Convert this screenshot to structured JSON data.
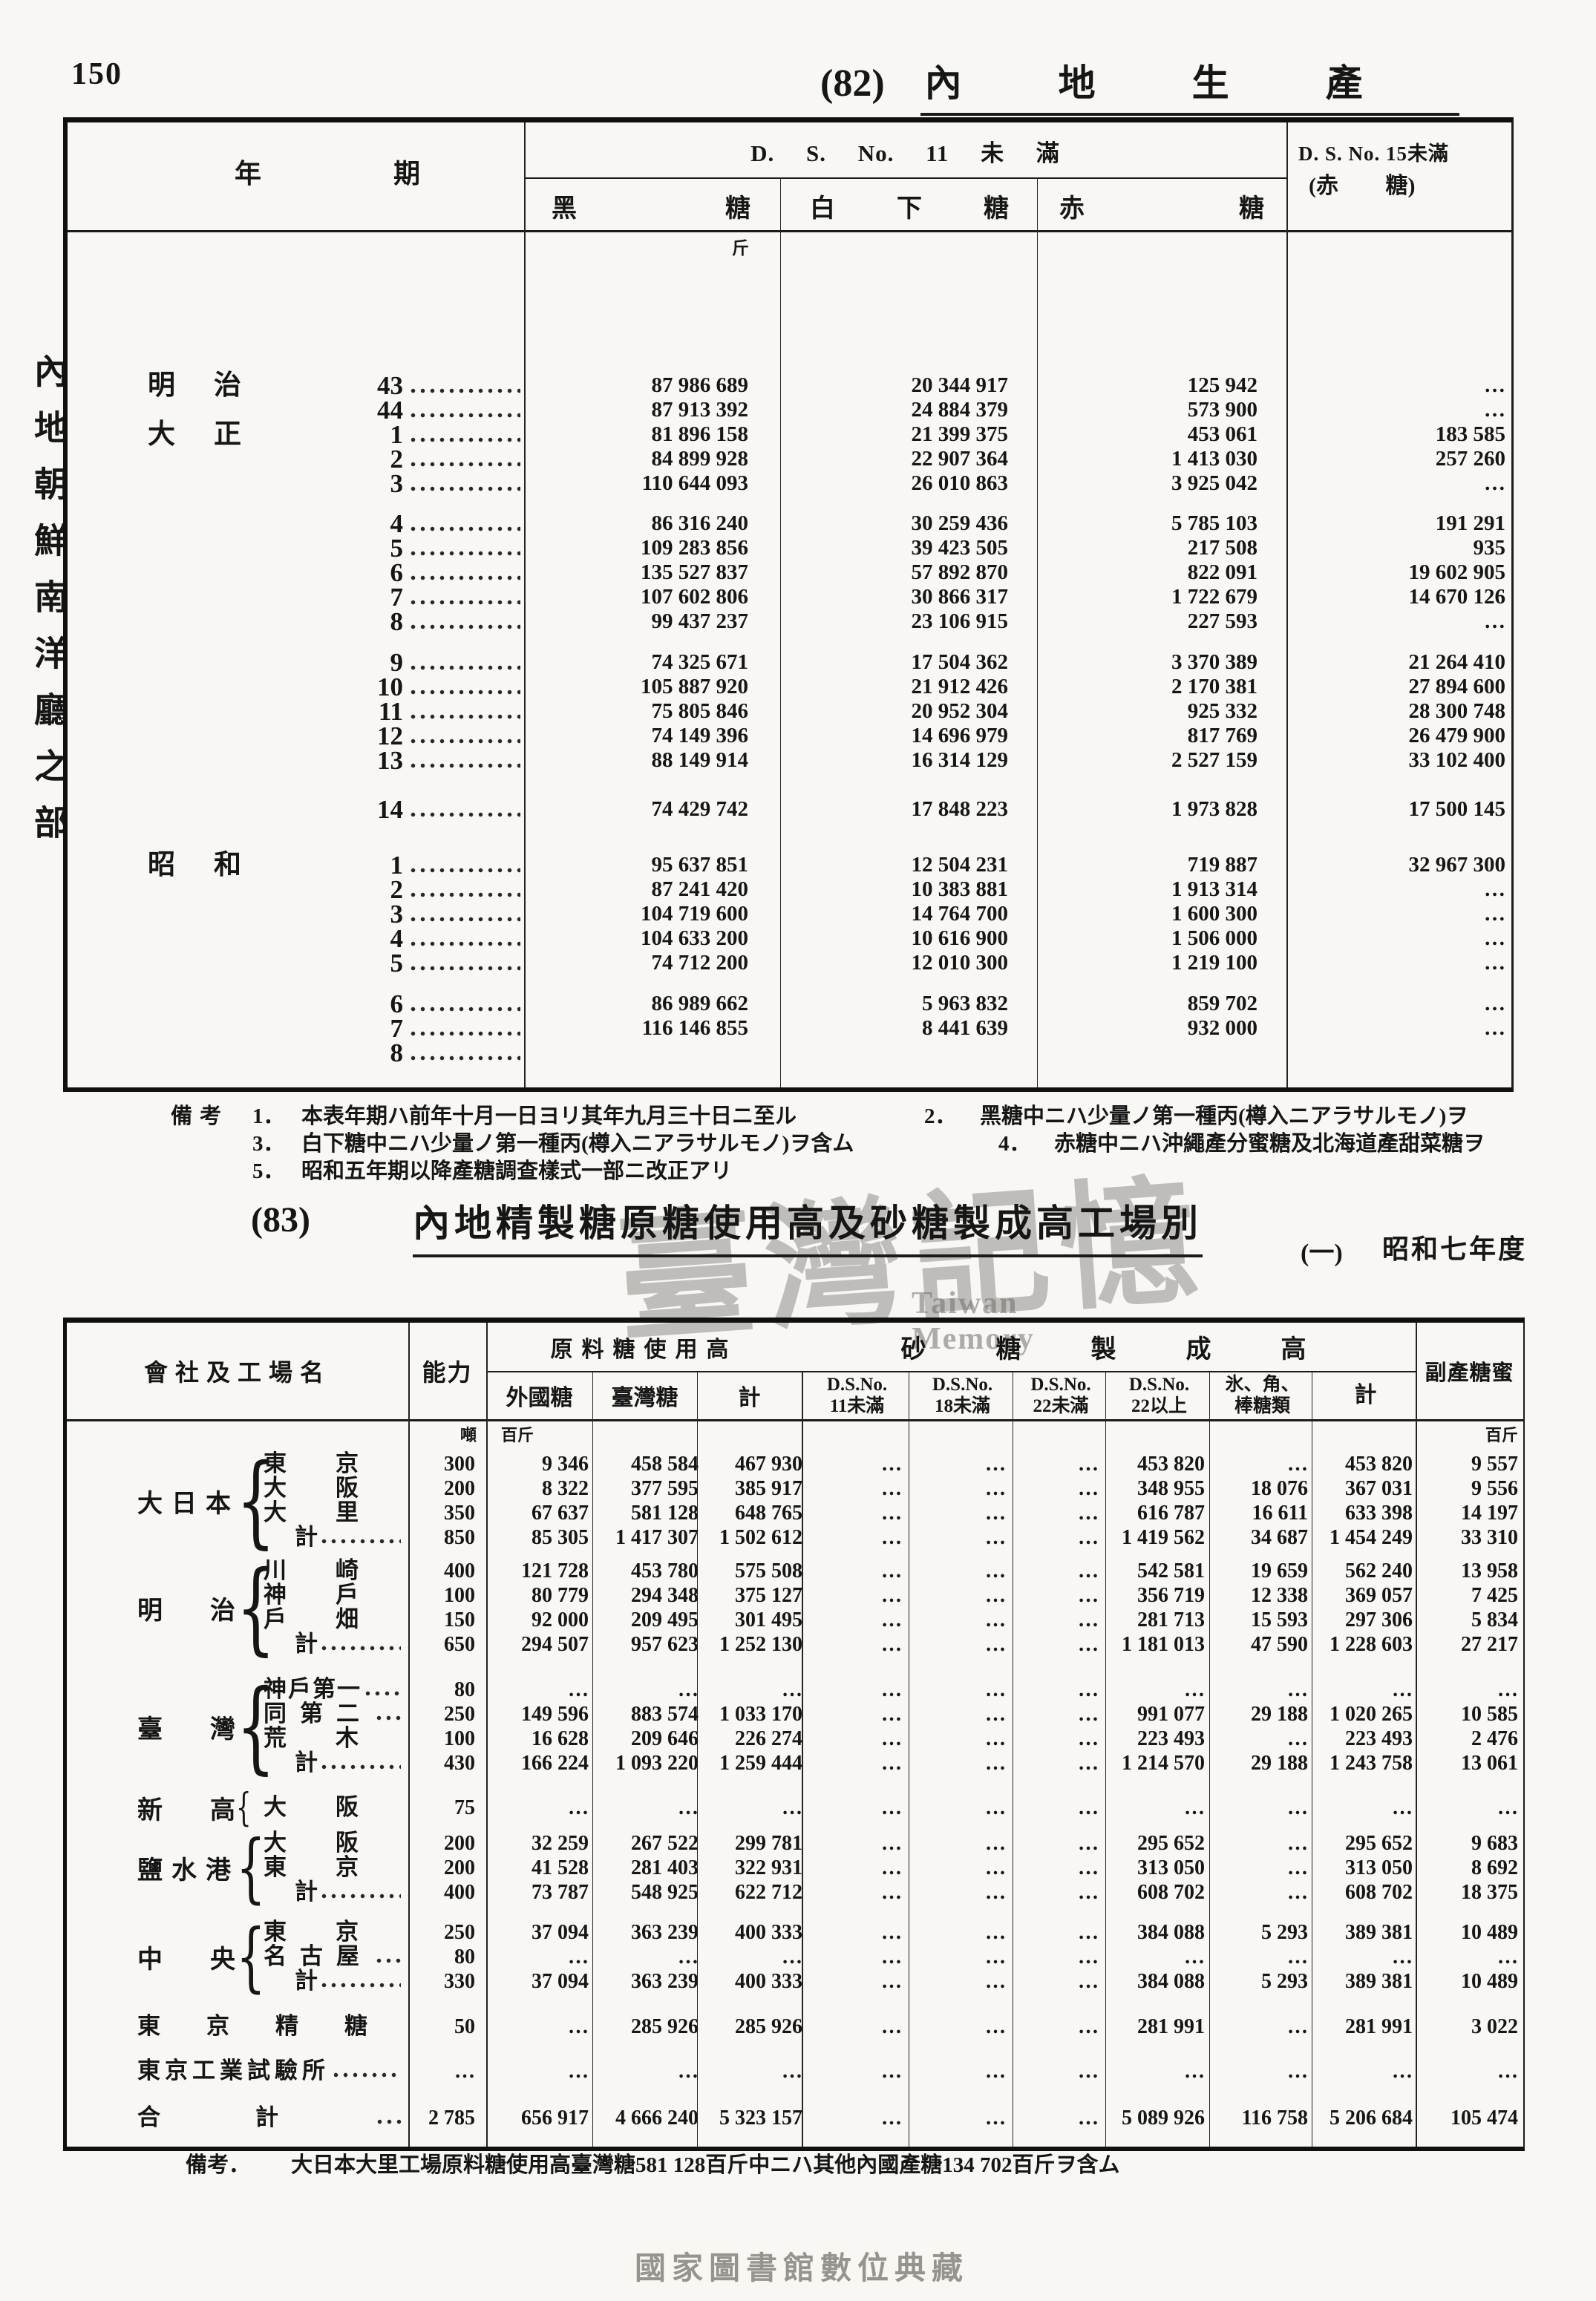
{
  "page": {
    "number": "150",
    "sidebar_label": "內地朝鮮南洋廳之部",
    "footer": "國家圖書館數位典藏",
    "watermark": {
      "cjk": "臺灣記憶",
      "latin": "Taiwan Memory"
    },
    "ink_color": "#161616",
    "paper_color": "#f8f7f3",
    "watermark_color": "#706e69"
  },
  "table82": {
    "tag": "(82)",
    "title": "內地生產",
    "header": {
      "year_period_left": "年",
      "year_period_right": "期",
      "ds11_span": "D. S. No. 11 未 滿",
      "col_black_left": "黑",
      "col_black_right": "糖",
      "col_white_1": "白",
      "col_white_2": "下",
      "col_white_3": "糖",
      "col_red_left": "赤",
      "col_red_right": "糖",
      "ds15_line1": "D. S. No. 15未滿",
      "ds15_line2": "(赤 糖)",
      "unit": "斤"
    },
    "groups": [
      {
        "rows": [
          {
            "era": "明治",
            "year": "43",
            "v": [
              "87 986 689",
              "20 344 917",
              "125 942",
              "…"
            ]
          },
          {
            "era": "",
            "year": "44",
            "v": [
              "87 913 392",
              "24 884 379",
              "573 900",
              "…"
            ]
          },
          {
            "era": "大正",
            "year": "1",
            "v": [
              "81 896 158",
              "21 399 375",
              "453 061",
              "183 585"
            ]
          },
          {
            "era": "",
            "year": "2",
            "v": [
              "84 899 928",
              "22 907 364",
              "1 413 030",
              "257 260"
            ]
          },
          {
            "era": "",
            "year": "3",
            "v": [
              "110 644 093",
              "26 010 863",
              "3 925 042",
              "…"
            ]
          }
        ]
      },
      {
        "rows": [
          {
            "era": "",
            "year": "4",
            "v": [
              "86 316 240",
              "30 259 436",
              "5 785 103",
              "191 291"
            ]
          },
          {
            "era": "",
            "year": "5",
            "v": [
              "109 283 856",
              "39 423 505",
              "217 508",
              "935"
            ]
          },
          {
            "era": "",
            "year": "6",
            "v": [
              "135 527 837",
              "57 892 870",
              "822 091",
              "19 602 905"
            ]
          },
          {
            "era": "",
            "year": "7",
            "v": [
              "107 602 806",
              "30 866 317",
              "1 722 679",
              "14 670 126"
            ]
          },
          {
            "era": "",
            "year": "8",
            "v": [
              "99 437 237",
              "23 106 915",
              "227 593",
              "…"
            ]
          }
        ]
      },
      {
        "rows": [
          {
            "era": "",
            "year": "9",
            "v": [
              "74 325 671",
              "17 504 362",
              "3 370 389",
              "21 264 410"
            ]
          },
          {
            "era": "",
            "year": "10",
            "v": [
              "105 887 920",
              "21 912 426",
              "2 170 381",
              "27 894 600"
            ]
          },
          {
            "era": "",
            "year": "11",
            "v": [
              "75 805 846",
              "20 952 304",
              "925 332",
              "28 300 748"
            ]
          },
          {
            "era": "",
            "year": "12",
            "v": [
              "74 149 396",
              "14 696 979",
              "817 769",
              "26 479 900"
            ]
          },
          {
            "era": "",
            "year": "13",
            "v": [
              "88 149 914",
              "16 314 129",
              "2 527 159",
              "33 102 400"
            ]
          }
        ]
      },
      {
        "rows": [
          {
            "era": "",
            "year": "14",
            "v": [
              "74 429 742",
              "17 848 223",
              "1 973 828",
              "17 500 145"
            ]
          }
        ]
      },
      {
        "rows": [
          {
            "era": "昭和",
            "year": "1",
            "v": [
              "95 637 851",
              "12 504 231",
              "719 887",
              "32 967 300"
            ]
          },
          {
            "era": "",
            "year": "2",
            "v": [
              "87 241 420",
              "10 383 881",
              "1 913 314",
              "…"
            ]
          },
          {
            "era": "",
            "year": "3",
            "v": [
              "104 719 600",
              "14 764 700",
              "1 600 300",
              "…"
            ]
          },
          {
            "era": "",
            "year": "4",
            "v": [
              "104 633 200",
              "10 616 900",
              "1 506 000",
              "…"
            ]
          },
          {
            "era": "",
            "year": "5",
            "v": [
              "74 712 200",
              "12 010 300",
              "1 219 100",
              "…"
            ]
          }
        ]
      },
      {
        "rows": [
          {
            "era": "",
            "year": "6",
            "v": [
              "86 989 662",
              "5 963 832",
              "859 702",
              "…"
            ]
          },
          {
            "era": "",
            "year": "7",
            "v": [
              "116 146 855",
              "8 441 639",
              "932 000",
              "…"
            ]
          },
          {
            "era": "",
            "year": "8",
            "v": [
              "",
              "",
              "",
              ""
            ]
          }
        ]
      }
    ],
    "remarks": {
      "label": "備考",
      "lines": [
        [
          {
            "n": "1．",
            "t": "本表年期ハ前年十月一日ヨリ其年九月三十日ニ至ル"
          },
          {
            "n": "2．",
            "t": "黑糖中ニハ少量ノ第一種丙(樽入ニアラサルモノ)ヲ"
          }
        ],
        [
          {
            "n": "3．",
            "t": "白下糖中ニハ少量ノ第一種丙(樽入ニアラサルモノ)ヲ含ム"
          },
          {
            "n": "4．",
            "t": "赤糖中ニハ沖繩產分蜜糖及北海道產甜菜糖ヲ"
          }
        ],
        [
          {
            "n": "5．",
            "t": "昭和五年期以降產糖調查樣式一部ニ改正アリ"
          }
        ]
      ]
    }
  },
  "table83": {
    "tag": "(83)",
    "title": "內地精製糖原糖使用高及砂糖製成高工場別",
    "subtitle_no": "(一)",
    "subtitle_year": "昭和七年度",
    "header": {
      "company": "會社及工場名",
      "capacity": "能力",
      "raw_span": "原料糖使用高",
      "made_span": "砂糖製成高",
      "cols": [
        "外國糖",
        "臺灣糖",
        "計"
      ],
      "ds_cols": [
        [
          "D.S.No.",
          "11未滿"
        ],
        [
          "D.S.No.",
          "18未滿"
        ],
        [
          "D.S.No.",
          "22未滿"
        ],
        [
          "D.S.No.",
          "22以上"
        ],
        [
          "氷、角、",
          "棒糖類"
        ],
        [
          "計",
          ""
        ]
      ],
      "byproduct": "副產糖蜜",
      "unit_ton": "噸",
      "unit_kin_left": "百斤",
      "unit_kin_right": "百斤"
    },
    "groups": [
      {
        "company": "大日本",
        "rows": [
          {
            "name": "東京",
            "cap": "300",
            "v": [
              "9 346",
              "458 584",
              "467 930",
              "…",
              "…",
              "…",
              "453 820",
              "…",
              "453 820",
              "9 557"
            ]
          },
          {
            "name": "大阪",
            "cap": "200",
            "v": [
              "8 322",
              "377 595",
              "385 917",
              "…",
              "…",
              "…",
              "348 955",
              "18 076",
              "367 031",
              "9 556"
            ]
          },
          {
            "name": "大里",
            "cap": "350",
            "v": [
              "67 637",
              "581 128",
              "648 765",
              "…",
              "…",
              "…",
              "616 787",
              "16 611",
              "633 398",
              "14 197"
            ]
          },
          {
            "name": "計",
            "cap": "850",
            "v": [
              "85 305",
              "1 417 307",
              "1 502 612",
              "…",
              "…",
              "…",
              "1 419 562",
              "34 687",
              "1 454 249",
              "33 310"
            ]
          }
        ]
      },
      {
        "company": "明治",
        "rows": [
          {
            "name": "川崎",
            "cap": "400",
            "v": [
              "121 728",
              "453 780",
              "575 508",
              "…",
              "…",
              "…",
              "542 581",
              "19 659",
              "562 240",
              "13 958"
            ]
          },
          {
            "name": "神戶",
            "cap": "100",
            "v": [
              "80 779",
              "294 348",
              "375 127",
              "…",
              "…",
              "…",
              "356 719",
              "12 338",
              "369 057",
              "7 425"
            ]
          },
          {
            "name": "戶畑",
            "cap": "150",
            "v": [
              "92 000",
              "209 495",
              "301 495",
              "…",
              "…",
              "…",
              "281 713",
              "15 593",
              "297 306",
              "5 834"
            ]
          },
          {
            "name": "計",
            "cap": "650",
            "v": [
              "294 507",
              "957 623",
              "1 252 130",
              "…",
              "…",
              "…",
              "1 181 013",
              "47 590",
              "1 228 603",
              "27 217"
            ]
          }
        ]
      },
      {
        "company": "臺灣",
        "rows": [
          {
            "name": "神戶第一",
            "cap": "80",
            "v": [
              "…",
              "…",
              "…",
              "…",
              "…",
              "…",
              "…",
              "…",
              "…",
              "…"
            ]
          },
          {
            "name": "同第二",
            "cap": "250",
            "v": [
              "149 596",
              "883 574",
              "1 033 170",
              "…",
              "…",
              "…",
              "991 077",
              "29 188",
              "1 020 265",
              "10 585"
            ]
          },
          {
            "name": "荒木",
            "cap": "100",
            "v": [
              "16 628",
              "209 646",
              "226 274",
              "…",
              "…",
              "…",
              "223 493",
              "…",
              "223 493",
              "2 476"
            ]
          },
          {
            "name": "計",
            "cap": "430",
            "v": [
              "166 224",
              "1 093 220",
              "1 259 444",
              "…",
              "…",
              "…",
              "1 214 570",
              "29 188",
              "1 243 758",
              "13 061"
            ]
          }
        ]
      },
      {
        "company": "新高",
        "rows": [
          {
            "name": "大阪",
            "cap": "75",
            "v": [
              "…",
              "…",
              "…",
              "…",
              "…",
              "…",
              "…",
              "…",
              "…",
              "…"
            ]
          }
        ]
      },
      {
        "company": "鹽水港",
        "rows": [
          {
            "name": "大阪",
            "cap": "200",
            "v": [
              "32 259",
              "267 522",
              "299 781",
              "…",
              "…",
              "…",
              "295 652",
              "…",
              "295 652",
              "9 683"
            ]
          },
          {
            "name": "東京",
            "cap": "200",
            "v": [
              "41 528",
              "281 403",
              "322 931",
              "…",
              "…",
              "…",
              "313 050",
              "…",
              "313 050",
              "8 692"
            ]
          },
          {
            "name": "計",
            "cap": "400",
            "v": [
              "73 787",
              "548 925",
              "622 712",
              "…",
              "…",
              "…",
              "608 702",
              "…",
              "608 702",
              "18 375"
            ]
          }
        ]
      },
      {
        "company": "中央",
        "rows": [
          {
            "name": "東京",
            "cap": "250",
            "v": [
              "37 094",
              "363 239",
              "400 333",
              "…",
              "…",
              "…",
              "384 088",
              "5 293",
              "389 381",
              "10 489"
            ]
          },
          {
            "name": "名古屋",
            "cap": "80",
            "v": [
              "…",
              "…",
              "…",
              "…",
              "…",
              "…",
              "…",
              "…",
              "…",
              "…"
            ]
          },
          {
            "name": "計",
            "cap": "330",
            "v": [
              "37 094",
              "363 239",
              "400 333",
              "…",
              "…",
              "…",
              "384 088",
              "5 293",
              "389 381",
              "10 489"
            ]
          }
        ]
      },
      {
        "company": "",
        "rows": [
          {
            "name": "東京精糖",
            "cap": "50",
            "v": [
              "…",
              "285 926",
              "285 926",
              "…",
              "…",
              "…",
              "281 991",
              "…",
              "281 991",
              "3 022"
            ]
          }
        ]
      },
      {
        "company": "",
        "rows": [
          {
            "name": "東京工業試驗所",
            "cap": "…",
            "v": [
              "…",
              "…",
              "…",
              "…",
              "…",
              "…",
              "…",
              "…",
              "…",
              "…"
            ]
          }
        ]
      },
      {
        "company": "",
        "rows": [
          {
            "name": "合計",
            "cap": "2 785",
            "v": [
              "656 917",
              "4 666 240",
              "5 323 157",
              "…",
              "…",
              "…",
              "5 089 926",
              "116 758",
              "5 206 684",
              "105 474"
            ]
          }
        ]
      }
    ],
    "remark": {
      "label": "備考．",
      "text": "大日本大里工場原料糖使用高臺灣糖581 128百斤中ニハ其他內國產糖134 702百斤ヲ含ム"
    }
  }
}
